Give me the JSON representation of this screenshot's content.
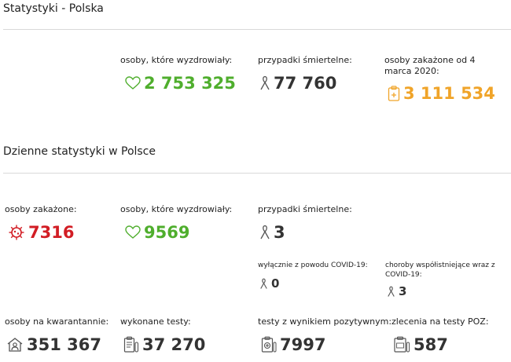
{
  "poland": {
    "title": "Statystyki - Polska",
    "recovered": {
      "label": "osoby, które wyzdrowiały:",
      "value": "2 753 325"
    },
    "deaths": {
      "label": "przypadki śmiertelne:",
      "value": "77 760"
    },
    "infected": {
      "label": "osoby zakażone od 4 marca 2020:",
      "value": "3 111 534"
    }
  },
  "daily": {
    "title": "Dzienne statystyki w Polsce",
    "infected": {
      "label": "osoby zakażone:",
      "value": "7316"
    },
    "recovered": {
      "label": "osoby, które wyzdrowiały:",
      "value": "9569"
    },
    "deaths": {
      "label": "przypadki śmiertelne:",
      "value": "3"
    },
    "deaths_covid_only": {
      "label": "wyłącznie z powodu COVID-19:",
      "value": "0"
    },
    "deaths_comorbid": {
      "label": "choroby współistniejące wraz z COVID-19:",
      "value": "3"
    },
    "quarantine": {
      "label": "osoby na kwarantannie:",
      "value": "351 367"
    },
    "tests": {
      "label": "wykonane testy:",
      "value": "37 270"
    },
    "positive_tests": {
      "label": "testy z wynikiem pozytywnym:",
      "value": "7997"
    },
    "poz_orders": {
      "label": "zlecenia na testy POZ:",
      "value": "587"
    }
  },
  "colors": {
    "green": "#4fae2d",
    "red": "#d21d24",
    "orange": "#f0a429",
    "dark": "#333333"
  },
  "icons": [
    "heart-icon",
    "ribbon-icon",
    "clipboard-icon",
    "virus-icon",
    "house-person-icon",
    "test-report-icon",
    "positive-test-icon",
    "poz-order-icon"
  ]
}
